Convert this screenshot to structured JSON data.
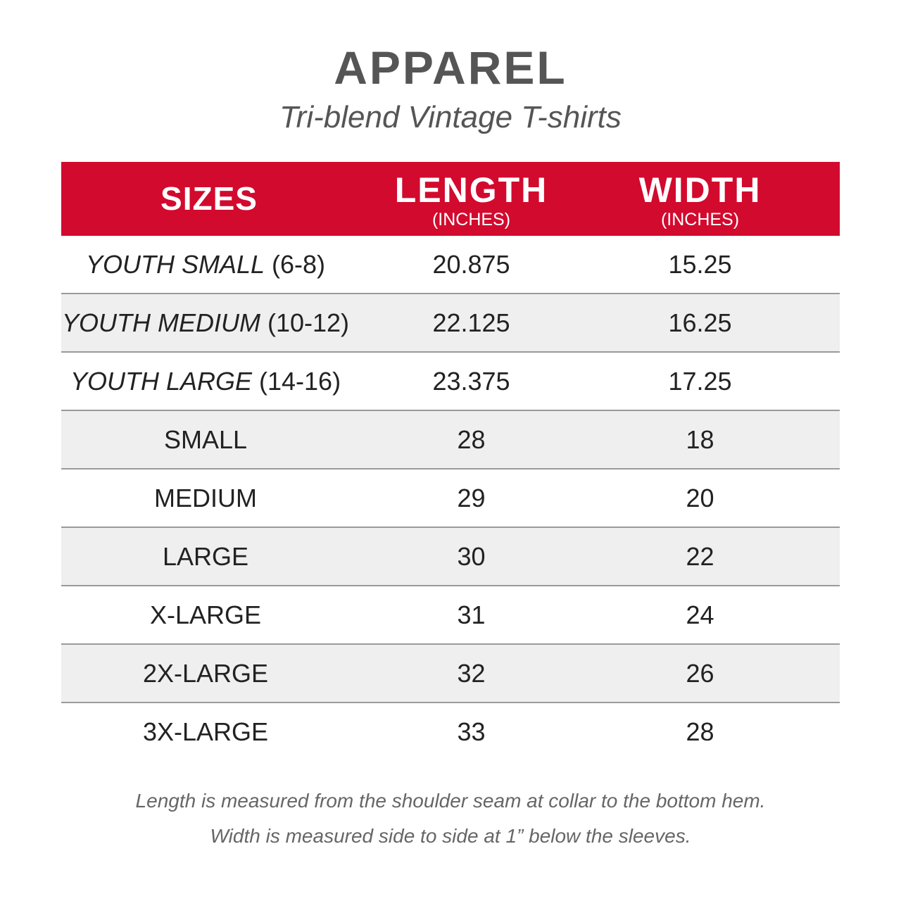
{
  "header": {
    "title": "APPAREL",
    "subtitle": "Tri-blend Vintage T-shirts"
  },
  "table": {
    "columns": {
      "sizes": "SIZES",
      "length": "LENGTH",
      "length_unit": "(INCHES)",
      "width": "WIDTH",
      "width_unit": "(INCHES)"
    },
    "rows": [
      {
        "size": "YOUTH SMALL",
        "range": "(6-8)",
        "length": "20.875",
        "width": "15.25"
      },
      {
        "size": "YOUTH MEDIUM",
        "range": "(10-12)",
        "length": "22.125",
        "width": "16.25"
      },
      {
        "size": "YOUTH LARGE",
        "range": "(14-16)",
        "length": "23.375",
        "width": "17.25"
      },
      {
        "size": "SMALL",
        "length": "28",
        "width": "18"
      },
      {
        "size": "MEDIUM",
        "length": "29",
        "width": "20"
      },
      {
        "size": "LARGE",
        "length": "30",
        "width": "22"
      },
      {
        "size": "X-LARGE",
        "length": "31",
        "width": "24"
      },
      {
        "size": "2X-LARGE",
        "length": "32",
        "width": "26"
      },
      {
        "size": "3X-LARGE",
        "length": "33",
        "width": "28"
      }
    ]
  },
  "footnotes": {
    "length_note": "Length is measured from the shoulder seam at collar to the bottom hem.",
    "width_note": "Width is measured side to side at 1” below the sleeves."
  },
  "colors": {
    "header_red": "#d20a2e",
    "title_gray": "#555555",
    "row_shade": "#efefef",
    "divider": "#9a9a9a"
  }
}
